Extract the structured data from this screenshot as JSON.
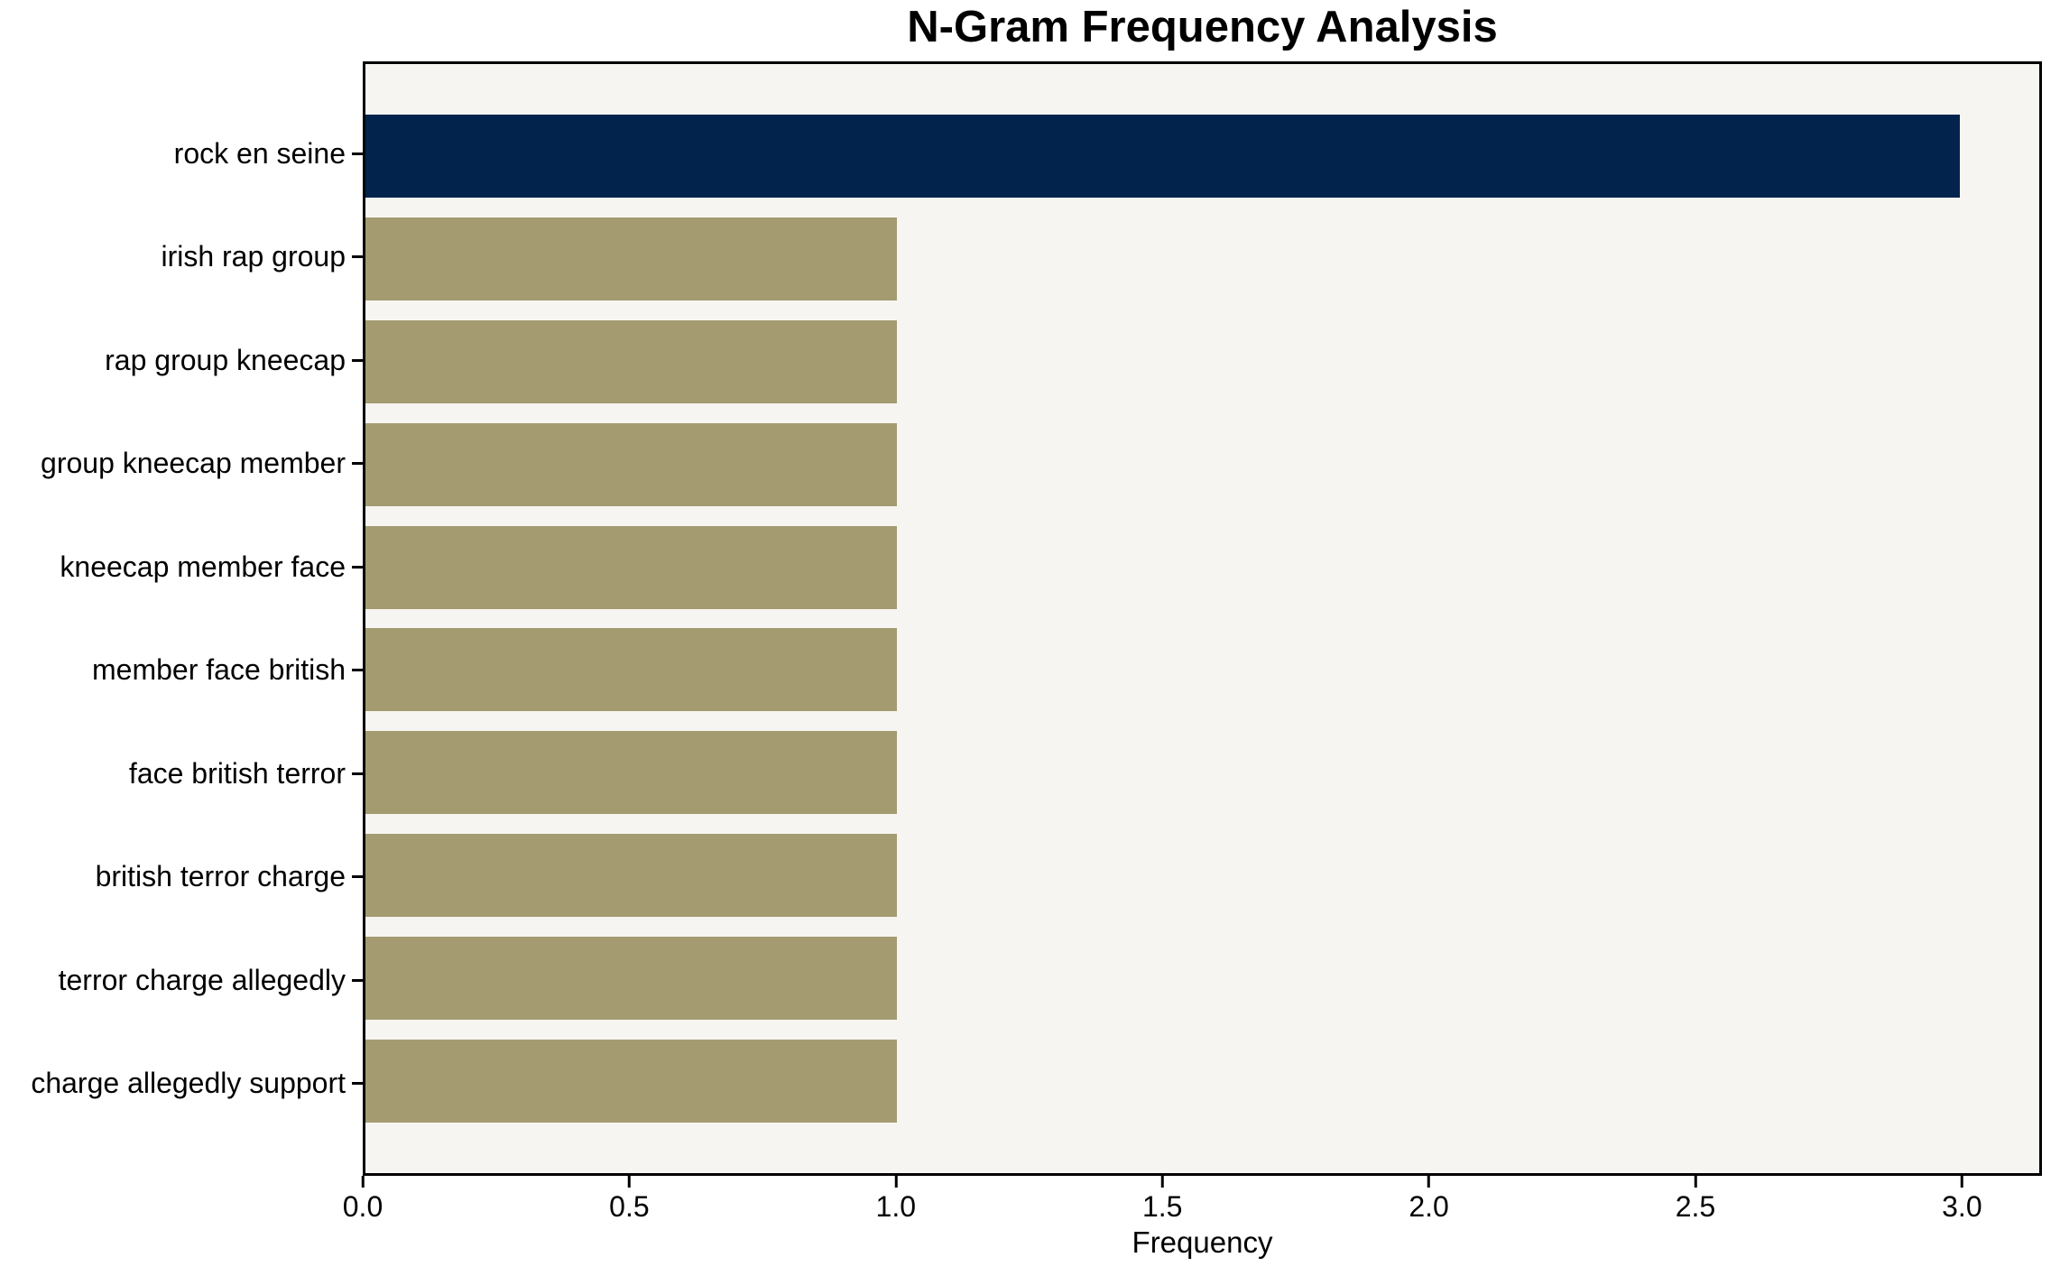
{
  "chart_data": {
    "type": "bar",
    "orientation": "horizontal",
    "title": "N-Gram Frequency Analysis",
    "xlabel": "Frequency",
    "ylabel": "",
    "categories": [
      "rock en seine",
      "irish rap group",
      "rap group kneecap",
      "group kneecap member",
      "kneecap member face",
      "member face british",
      "face british terror",
      "british terror charge",
      "terror charge allegedly",
      "charge allegedly support"
    ],
    "values": [
      3,
      1,
      1,
      1,
      1,
      1,
      1,
      1,
      1,
      1
    ],
    "x_ticks": [
      {
        "value": 0.0,
        "label": "0.0"
      },
      {
        "value": 0.5,
        "label": "0.5"
      },
      {
        "value": 1.0,
        "label": "1.0"
      },
      {
        "value": 1.5,
        "label": "1.5"
      },
      {
        "value": 2.0,
        "label": "2.0"
      },
      {
        "value": 2.5,
        "label": "2.5"
      },
      {
        "value": 3.0,
        "label": "3.0"
      }
    ],
    "xlim": [
      0,
      3.15
    ],
    "grid": false,
    "legend": null,
    "bar_colors": [
      "#02234c",
      "#a49b70",
      "#a49b70",
      "#a49b70",
      "#a49b70",
      "#a49b70",
      "#a49b70",
      "#a49b70",
      "#a49b70",
      "#a49b70"
    ],
    "colors": {
      "bar_highlight": "#02234c",
      "bar_default": "#a49b70",
      "plot_background": "#f7f5f2",
      "figure_background": "#ffffff",
      "spine": "#000000",
      "text": "#000000"
    }
  }
}
